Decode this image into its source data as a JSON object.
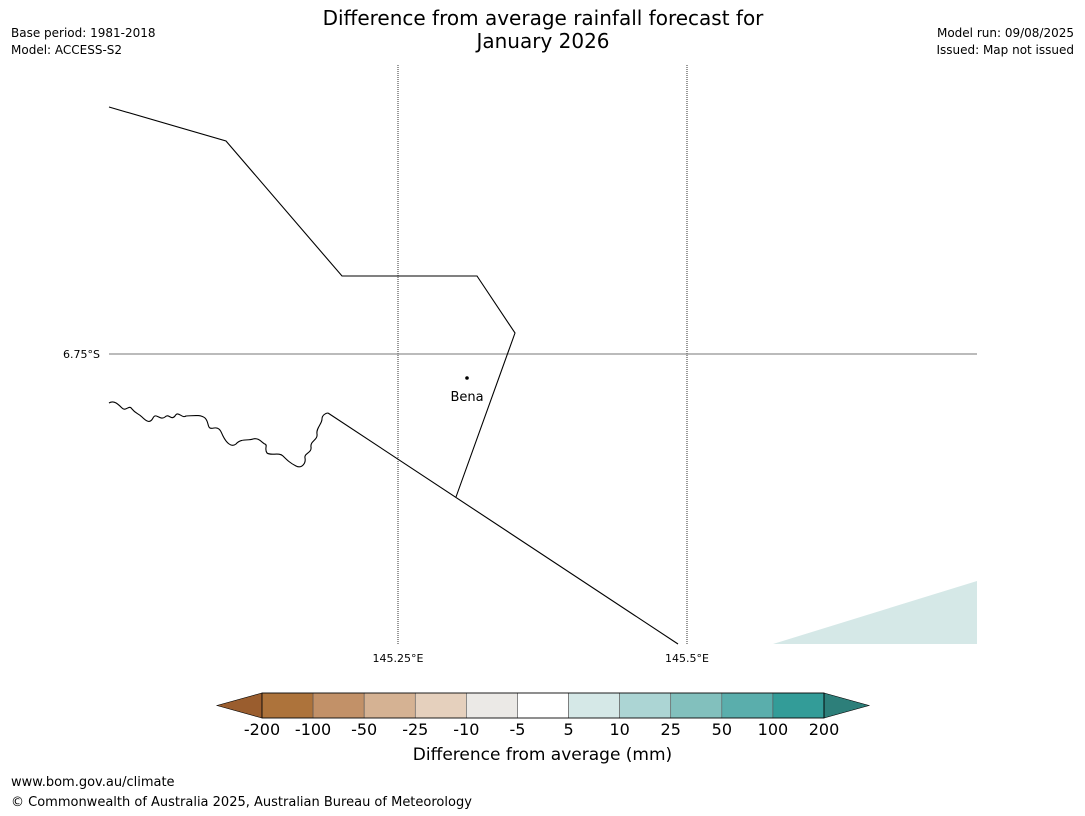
{
  "header": {
    "title_line1": "Difference from average rainfall forecast for",
    "title_line2": "January 2026",
    "base_period": "Base period: 1981-2018",
    "model": "Model: ACCESS-S2",
    "model_run": "Model run: 09/08/2025",
    "issued": "Issued: Map not issued"
  },
  "map": {
    "lat_label": "6.75°S",
    "lon_labels": [
      "145.25°E",
      "145.5°E"
    ],
    "town": "Bena",
    "shaded_category_color": "#d5e8e7"
  },
  "legend": {
    "title": "Difference from average (mm)",
    "ticks": [
      "-200",
      "-100",
      "-50",
      "-25",
      "-10",
      "-5",
      "5",
      "10",
      "25",
      "50",
      "100",
      "200"
    ],
    "colors": [
      "#9a5d2e",
      "#ad733b",
      "#c29168",
      "#d5b293",
      "#e5d0bd",
      "#ebe9e6",
      "#ffffff",
      "#d5e8e7",
      "#acd5d4",
      "#82c0bd",
      "#5aaeac",
      "#339c98",
      "#2d7f7a"
    ]
  },
  "footer": {
    "url": "www.bom.gov.au/climate",
    "copyright": "© Commonwealth of Australia 2025, Australian Bureau of Meteorology"
  }
}
